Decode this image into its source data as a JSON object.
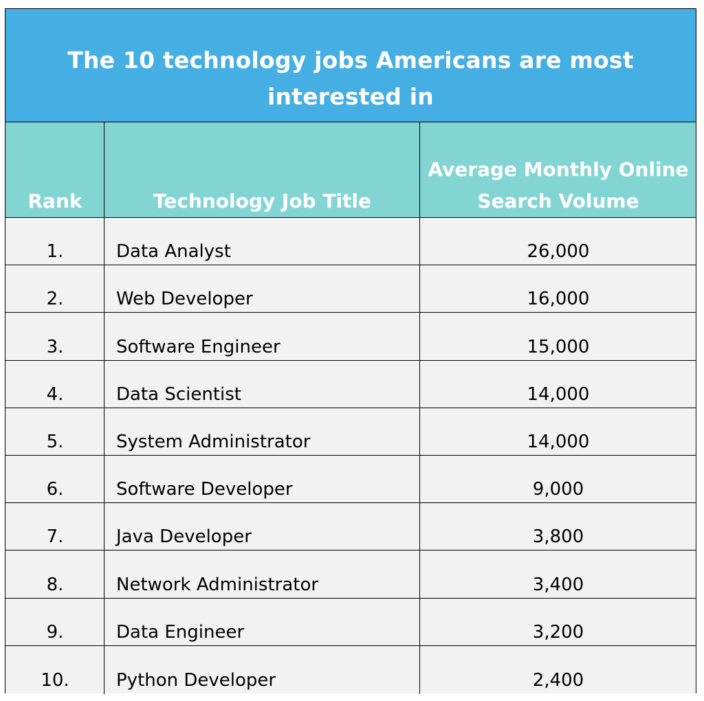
{
  "chart_data": {
    "type": "table",
    "title": "The 10 technology jobs Americans are most interested in",
    "columns": [
      "Rank",
      "Technology Job Title",
      "Average Monthly Online Search Volume"
    ],
    "rows": [
      {
        "rank": "1.",
        "title": "Data Analyst",
        "volume": "26,000"
      },
      {
        "rank": "2.",
        "title": "Web Developer",
        "volume": "16,000"
      },
      {
        "rank": "3.",
        "title": "Software Engineer",
        "volume": "15,000"
      },
      {
        "rank": "4.",
        "title": "Data Scientist",
        "volume": "14,000"
      },
      {
        "rank": "5.",
        "title": "System Administrator",
        "volume": "14,000"
      },
      {
        "rank": "6.",
        "title": "Software Developer",
        "volume": "9,000"
      },
      {
        "rank": "7.",
        "title": "Java Developer",
        "volume": "3,800"
      },
      {
        "rank": "8.",
        "title": "Network Administrator",
        "volume": "3,400"
      },
      {
        "rank": "9.",
        "title": "Data Engineer",
        "volume": "3,200"
      },
      {
        "rank": "10.",
        "title": "Python Developer",
        "volume": "2,400"
      }
    ],
    "colors": {
      "title_background": "#45aee2",
      "header_background": "#83d5d3",
      "row_background": "#f2f2f2",
      "header_text": "#ffffff"
    }
  }
}
